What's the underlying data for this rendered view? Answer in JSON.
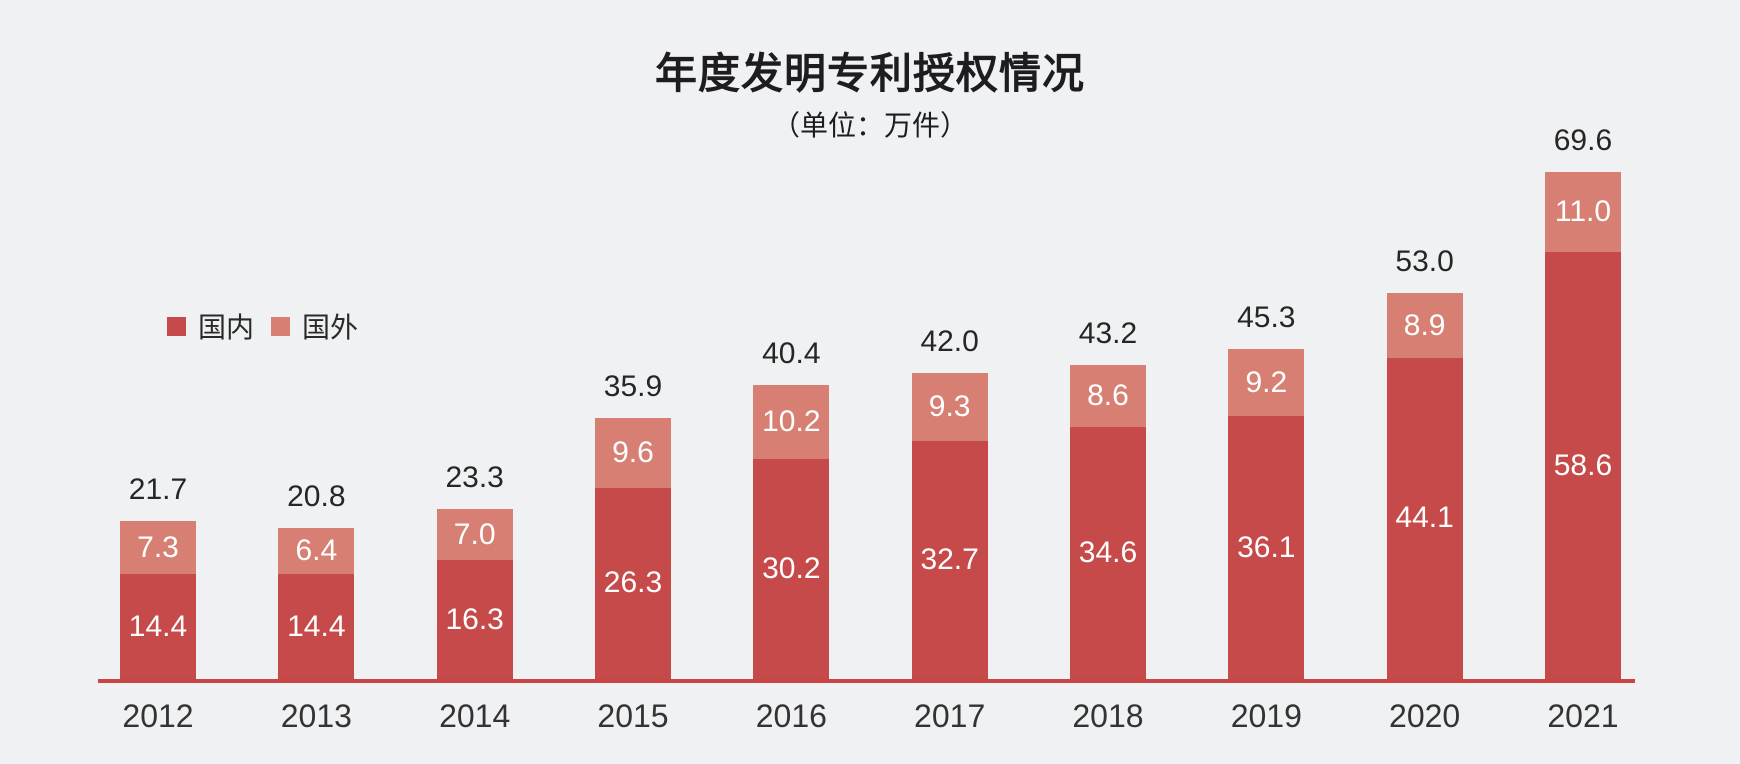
{
  "colors": {
    "domestic": "#c54a49",
    "foreign": "#d67f72",
    "axis": "#c74544",
    "background": "#f0f1f2"
  },
  "legend": {
    "items": [
      {
        "label": "国内",
        "color_key": "domestic"
      },
      {
        "label": "国外",
        "color_key": "foreign"
      }
    ]
  },
  "chart_data": {
    "type": "bar",
    "stacked": true,
    "title": "年度发明专利授权情况",
    "unit_label": "（单位：万件）",
    "categories": [
      "2012",
      "2013",
      "2014",
      "2015",
      "2016",
      "2017",
      "2018",
      "2019",
      "2020",
      "2021"
    ],
    "series": [
      {
        "name": "国内",
        "color": "#c54a49",
        "values": [
          14.4,
          14.4,
          16.3,
          26.3,
          30.2,
          32.7,
          34.6,
          36.1,
          44.1,
          58.6
        ]
      },
      {
        "name": "国外",
        "color": "#d67f72",
        "values": [
          7.3,
          6.4,
          7.0,
          9.6,
          10.2,
          9.3,
          8.6,
          9.2,
          8.9,
          11.0
        ]
      }
    ],
    "totals": [
      21.7,
      20.8,
      23.3,
      35.9,
      40.4,
      42.0,
      43.2,
      45.3,
      53.0,
      69.6
    ],
    "value_labels": "inside-segments-white, totals-above-bars",
    "legend_position": "left-middle",
    "grid": false,
    "x_axis_line": true,
    "y_axis": "hidden"
  }
}
